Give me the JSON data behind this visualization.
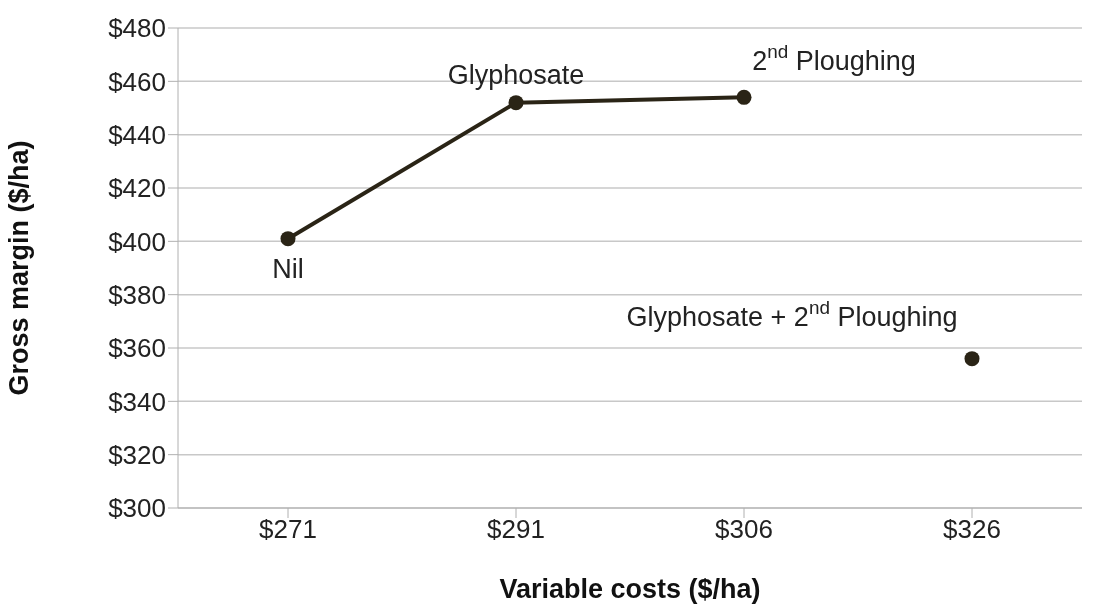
{
  "chart_data": {
    "type": "line",
    "xlabel": "Variable costs ($/ha)",
    "ylabel": "Gross margin ($/ha)",
    "categories": [
      "$271",
      "$291",
      "$306",
      "$326"
    ],
    "series": [
      {
        "type": "line",
        "color": "#2a2416",
        "values": [
          401,
          452,
          454,
          null
        ]
      },
      {
        "type": "scatter",
        "color": "#2a2416",
        "values": [
          null,
          null,
          null,
          356
        ]
      }
    ],
    "ylim": [
      300,
      480
    ],
    "yticks": [
      {
        "value": 300,
        "label": "$300"
      },
      {
        "value": 320,
        "label": "$320"
      },
      {
        "value": 340,
        "label": "$340"
      },
      {
        "value": 360,
        "label": "$360"
      },
      {
        "value": 380,
        "label": "$380"
      },
      {
        "value": 400,
        "label": "$400"
      },
      {
        "value": 420,
        "label": "$420"
      },
      {
        "value": 440,
        "label": "$440"
      },
      {
        "value": 460,
        "label": "$460"
      },
      {
        "value": 480,
        "label": "$480"
      }
    ],
    "grid": "y",
    "marker": "circle",
    "line_style": "solid",
    "legend": false,
    "annotations": [
      {
        "text": "Nil",
        "x": "$271",
        "y": 401
      },
      {
        "text": "Glyphosate",
        "x": "$291",
        "y": 452
      },
      {
        "text": "2$^{nd}$ Ploughing",
        "x": "$306",
        "y": 454
      },
      {
        "text": "Glyphosate + 2$^{nd}$ Ploughing",
        "x": "$326",
        "y": 356
      }
    ]
  }
}
